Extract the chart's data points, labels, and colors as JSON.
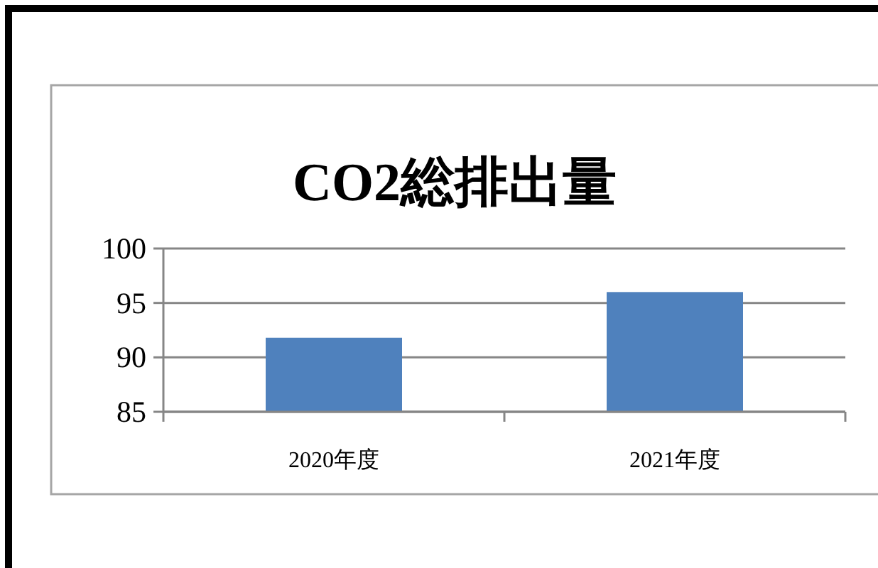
{
  "chart_data": {
    "type": "bar",
    "title": "CO2総排出量",
    "categories": [
      "2020年度",
      "2021年度"
    ],
    "values": [
      91.8,
      96.0
    ],
    "color": "#4f81bd",
    "ylim": [
      85,
      100
    ],
    "yticks": [
      85,
      90,
      95,
      100
    ],
    "grid": "y",
    "legend": false
  }
}
